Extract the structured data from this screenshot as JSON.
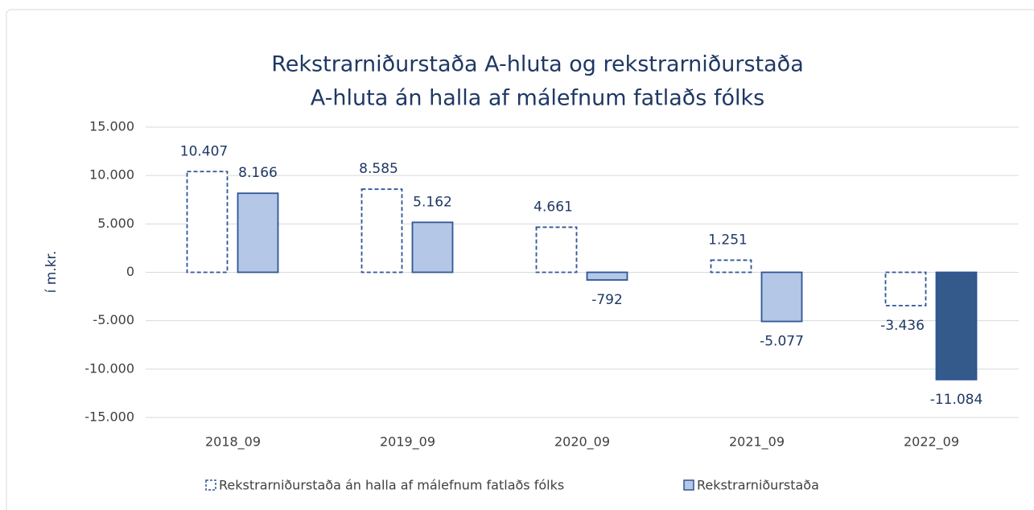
{
  "chart_data": {
    "type": "bar",
    "title": [
      "Rekstrarniðurstaða A-hluta og rekstrarniðurstaða",
      "A-hluta án halla af málefnum fatlaðs fólks"
    ],
    "y_label": "í m.kr.",
    "categories": [
      "2018_09",
      "2019_09",
      "2020_09",
      "2021_09",
      "2022_09"
    ],
    "series": [
      {
        "name": "Rekstrarniðurstaða án halla af málefnum fatlaðs fólks",
        "color": "#2f5597",
        "style": "dashed-outline",
        "values": [
          10407,
          8585,
          4661,
          1251,
          -3436
        ],
        "value_labels": [
          "10.407",
          "8.585",
          "4.661",
          "1.251",
          "-3.436"
        ]
      },
      {
        "name": "Rekstrarniðurstaða",
        "color": "#b4c7e7",
        "colors": [
          "#b4c7e7",
          "#b4c7e7",
          "#b4c7e7",
          "#b4c7e7",
          "#335a8a"
        ],
        "values": [
          8166,
          5162,
          -792,
          -5077,
          -11084
        ],
        "value_labels": [
          "8.166",
          "5.162",
          "-792",
          "-5.077",
          "-11.084"
        ]
      }
    ],
    "ylim": [
      -15000,
      15000
    ],
    "yticks": [
      {
        "value": -15000,
        "label": "-15.000"
      },
      {
        "value": -10000,
        "label": "-10.000"
      },
      {
        "value": -5000,
        "label": "-5.000"
      },
      0,
      {
        "value": 5000,
        "label": "5.000"
      },
      {
        "value": 10000,
        "label": "10.000"
      },
      {
        "value": 15000,
        "label": "15.000"
      }
    ],
    "grid": true,
    "legend": "bottom"
  }
}
